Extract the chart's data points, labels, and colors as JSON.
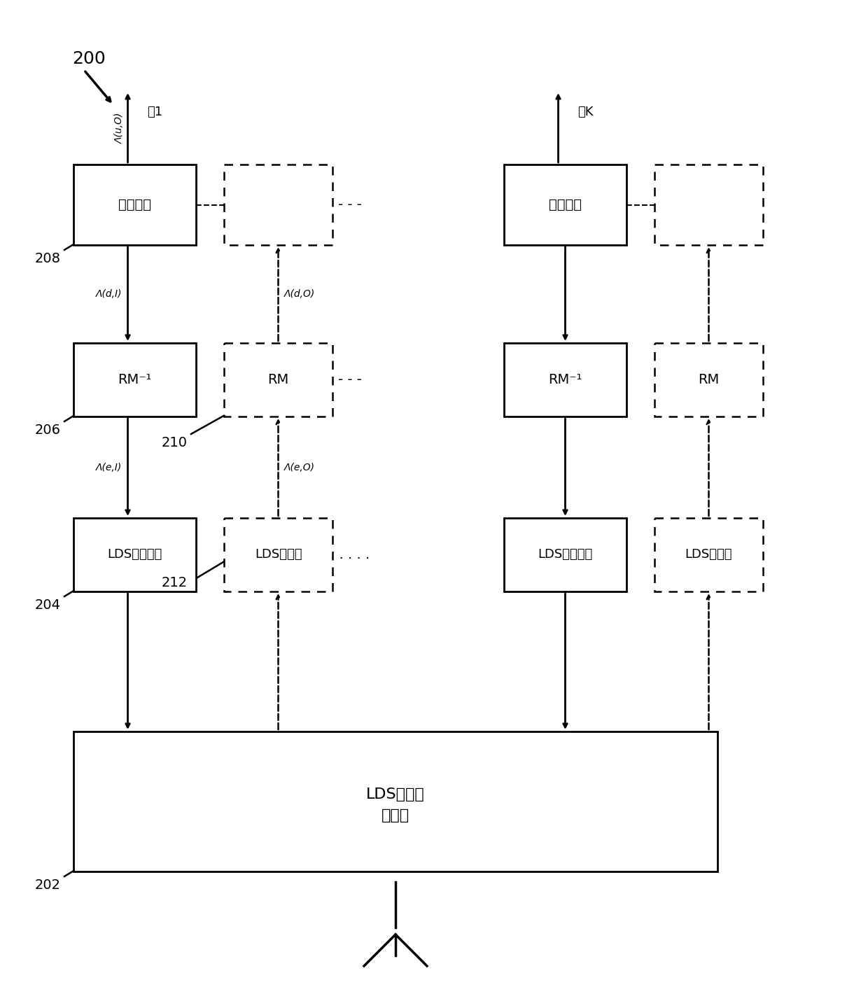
{
  "bg_color": "#ffffff",
  "label_200": "200",
  "label_202": "202",
  "label_204": "204",
  "label_206": "206",
  "label_208": "208",
  "label_210": "210",
  "label_212": "212",
  "box_lds_detector_line1": "LDS非迭代",
  "box_lds_detector_line2": "检测器",
  "box_lds_deinterleaver": "LDS解交织器",
  "box_lds_interleaver": "LDS交织器",
  "box_rm_inv": "RM⁻¹",
  "box_rm": "RM",
  "box_soft_decoder": "软解码器",
  "stream_1": "流1",
  "stream_k": "流K",
  "lambda_u_o": "Λ(u,O)",
  "lambda_d_i": "Λ(d,I)",
  "lambda_d_o": "Λ(d,O)",
  "lambda_e_i": "Λ(e,I)",
  "lambda_e_o": "Λ(e,O)",
  "dots_h": "- - -",
  "dots_v": ". . . . ."
}
